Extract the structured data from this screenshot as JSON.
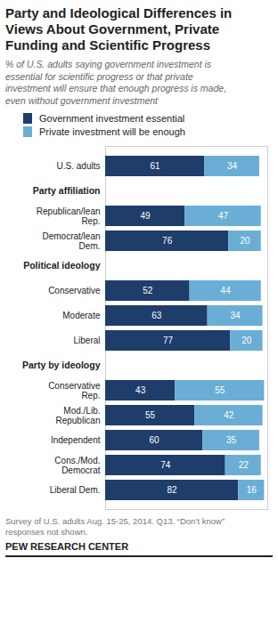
{
  "chart_data": {
    "type": "bar",
    "orientation": "horizontal",
    "stacked": true,
    "data_labels": true,
    "tick_labels": "y",
    "title": "Party and Ideological Differences in\nViews About Government, Private\nFunding and Scientific Progress",
    "subtitle": "% of U.S. adults saying government investment is\nessential for scientific progress or that private\ninvestment will ensure that enough progress is made,\neven without government investment",
    "categories": [
      "U.S. adults",
      "Republican/lean\nRep.",
      "Democrat/lean\nDem.",
      "Conservative",
      "Moderate",
      "Liberal",
      "Conservative\nRep.",
      "Mod./Lib.\nRepublican",
      "Independent",
      "Cons./Mod.\nDemocrat",
      "Liberal Dem."
    ],
    "groups": [
      null,
      "Party affiliation",
      "Party affiliation",
      "Political ideology",
      "Political ideology",
      "Political ideology",
      "Party by ideology",
      "Party by ideology",
      "Party by ideology",
      "Party by ideology",
      "Party by ideology"
    ],
    "series": [
      {
        "name": "Government investment essential",
        "color": "#1f3d6b",
        "values": [
          61,
          49,
          76,
          52,
          63,
          77,
          43,
          55,
          60,
          74,
          82
        ]
      },
      {
        "name": "Private investment will be enough",
        "color": "#6aaed6",
        "values": [
          34,
          47,
          20,
          44,
          34,
          20,
          55,
          42,
          35,
          22,
          16
        ]
      }
    ],
    "xlim": [
      0,
      100
    ],
    "footer": "Survey of U.S. adults Aug. 15-25, 2014. Q13. “Don’t know”\nresponses not shown.",
    "source": "PEW RESEARCH CENTER"
  }
}
